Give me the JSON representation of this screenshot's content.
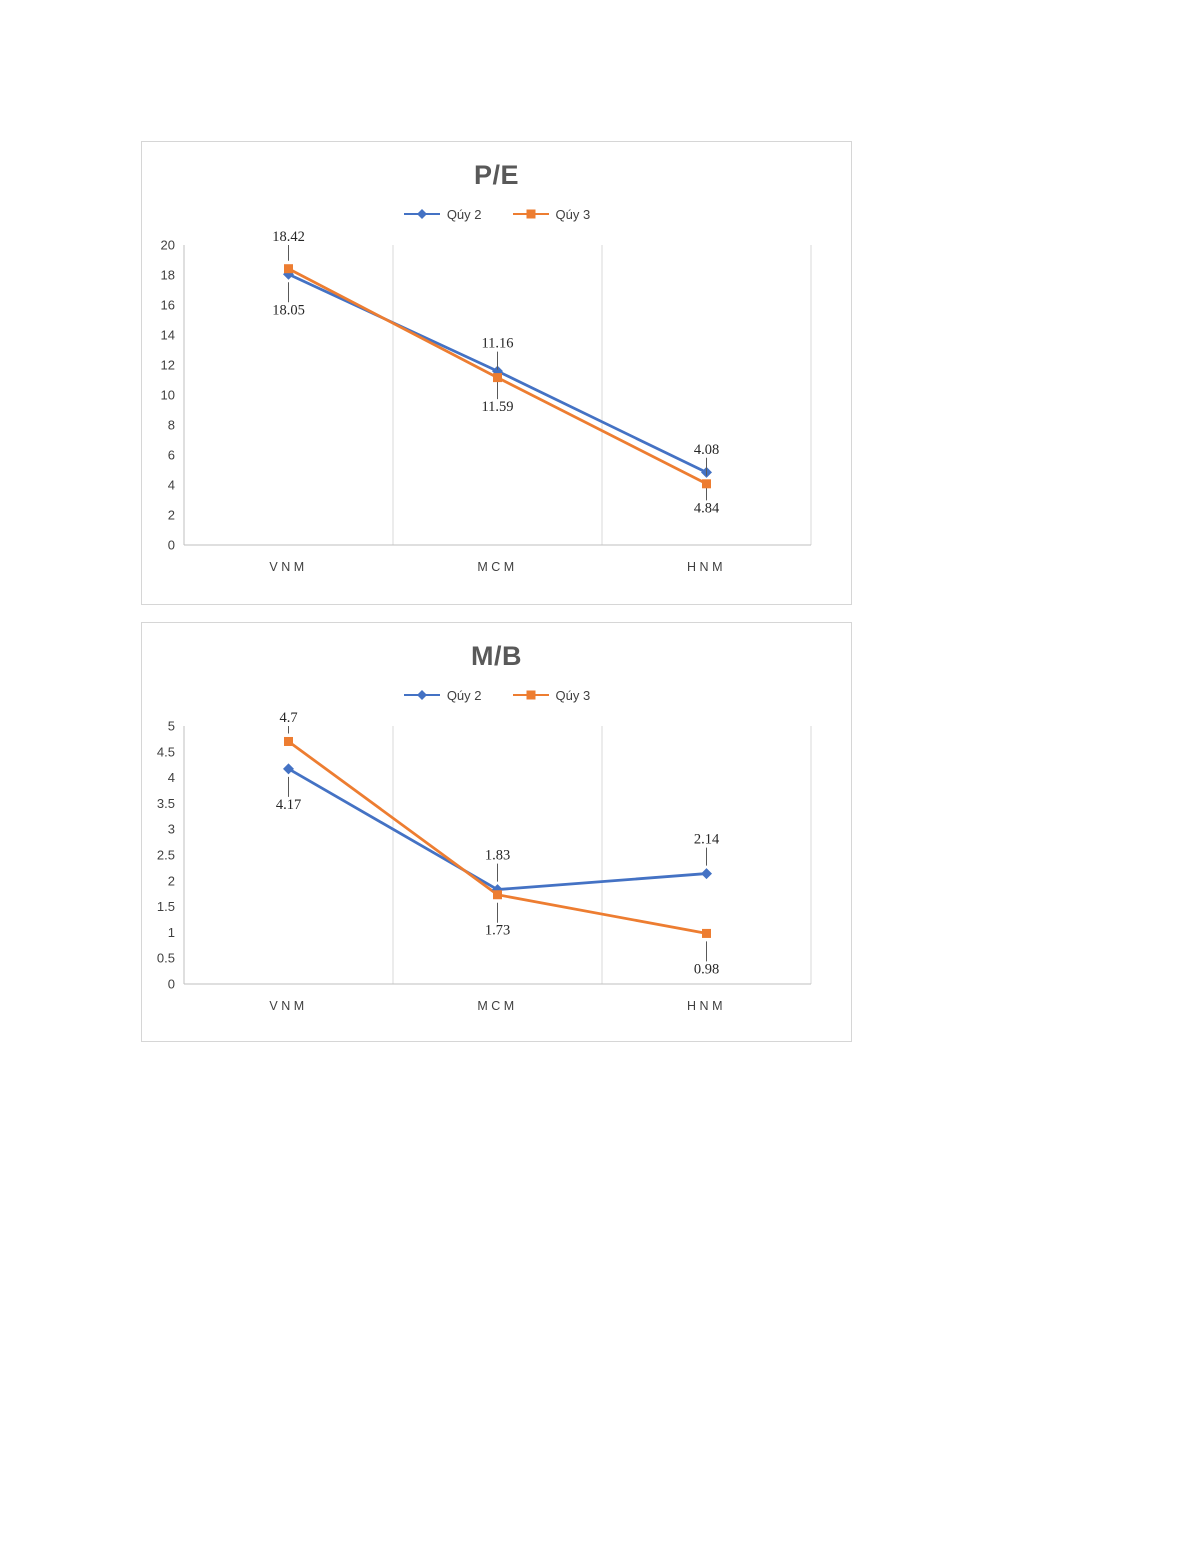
{
  "chart_data": [
    {
      "type": "line",
      "title": "P/E",
      "categories": [
        "VNM",
        "MCM",
        "HNM"
      ],
      "series": [
        {
          "name": "Qúy 2",
          "color": "#4472C4",
          "marker": "diamond",
          "values": [
            18.05,
            11.59,
            4.84
          ],
          "label_positions": [
            "below",
            "below",
            "below"
          ]
        },
        {
          "name": "Qúy 3",
          "color": "#ED7D31",
          "marker": "square",
          "values": [
            18.42,
            11.16,
            4.08
          ],
          "label_positions": [
            "above",
            "above",
            "above"
          ]
        }
      ],
      "ylim": [
        0,
        20
      ],
      "ytick_step": 2,
      "grid": "vertical",
      "legend_position": "top",
      "axis_color": "#bfbfbf",
      "grid_color": "#d9d9d9",
      "label_color": "#262626",
      "tick_color": "#404040"
    },
    {
      "type": "line",
      "title": "M/B",
      "categories": [
        "VNM",
        "MCM",
        "HNM"
      ],
      "series": [
        {
          "name": "Qúy 2",
          "color": "#4472C4",
          "marker": "diamond",
          "values": [
            4.17,
            1.83,
            2.14
          ],
          "label_positions": [
            "below",
            "above",
            "above"
          ]
        },
        {
          "name": "Qúy 3",
          "color": "#ED7D31",
          "marker": "square",
          "values": [
            4.7,
            1.73,
            0.98
          ],
          "label_positions": [
            "above",
            "below",
            "below"
          ]
        }
      ],
      "ylim": [
        0,
        5
      ],
      "ytick_step": 0.5,
      "grid": "vertical",
      "legend_position": "top",
      "axis_color": "#bfbfbf",
      "grid_color": "#d9d9d9",
      "label_color": "#262626",
      "tick_color": "#404040"
    }
  ]
}
